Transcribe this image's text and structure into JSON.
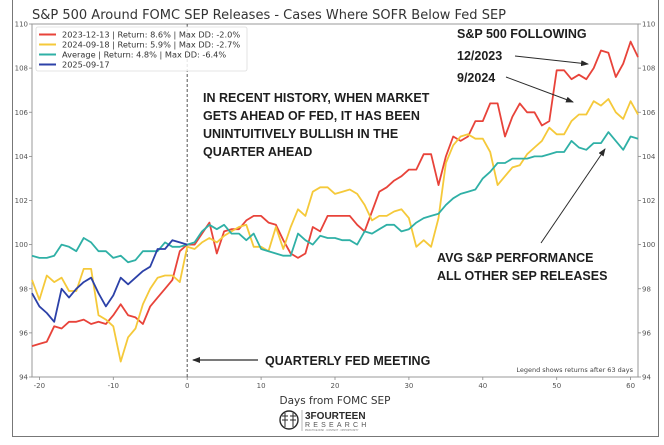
{
  "chart_data": {
    "type": "line",
    "title": "S&P 500 Around FOMC SEP Releases - Cases Where SOFR Below Fed SEP",
    "xlabel": "Days from FOMC SEP",
    "ylabel": "",
    "xlim": [
      -21,
      61
    ],
    "ylim": [
      94,
      110
    ],
    "xticks": [
      -20,
      -10,
      0,
      10,
      20,
      30,
      40,
      50,
      60
    ],
    "yticks": [
      94,
      96,
      98,
      100,
      102,
      104,
      106,
      108,
      110
    ],
    "grid": false,
    "dual_y_axis": true,
    "legend_position": "top-left",
    "colors": {
      "red": "#e8433a",
      "yellow": "#f5c93a",
      "teal": "#2fb0a6",
      "blue": "#2c41a8",
      "arrow": "#2a2a2a",
      "vline": "#555555"
    },
    "series": [
      {
        "name": "2023-12-13 | Return: 8.6% | Max DD: -2.0%",
        "color_key": "red",
        "x_start": -21,
        "values": [
          95.4,
          95.5,
          95.6,
          96.3,
          96.2,
          96.5,
          96.5,
          96.6,
          96.4,
          96.5,
          96.4,
          96.8,
          97.3,
          96.8,
          96.7,
          96.4,
          97.2,
          97.6,
          98.0,
          98.4,
          99.7,
          100.0,
          100.0,
          100.5,
          101.0,
          99.6,
          100.6,
          100.7,
          100.7,
          101.1,
          101.3,
          101.3,
          101.0,
          100.9,
          100.2,
          99.6,
          99.4,
          99.6,
          100.8,
          100.6,
          101.3,
          101.3,
          101.3,
          101.3,
          100.9,
          100.6,
          101.5,
          102.4,
          102.6,
          102.9,
          103.1,
          103.4,
          103.4,
          104.1,
          104.1,
          102.7,
          104.0,
          104.9,
          104.7,
          104.9,
          105.6,
          105.6,
          106.4,
          106.4,
          104.9,
          105.8,
          106.4,
          106.0,
          106.0,
          105.4,
          105.6,
          107.9,
          107.9,
          107.5,
          107.7,
          107.5,
          108.0,
          108.8,
          108.7,
          107.6,
          108.2,
          109.2,
          108.5
        ]
      },
      {
        "name": "2024-09-18 | Return: 5.9% | Max DD: -2.7%",
        "color_key": "yellow",
        "x_start": -21,
        "values": [
          98.4,
          97.5,
          98.6,
          98.3,
          98.5,
          97.9,
          97.9,
          98.9,
          98.9,
          96.8,
          96.6,
          96.3,
          94.7,
          95.8,
          96.2,
          97.3,
          98.0,
          98.5,
          98.6,
          98.6,
          98.3,
          99.9,
          99.8,
          100.1,
          100.3,
          100.1,
          100.4,
          100.6,
          100.8,
          100.9,
          99.9,
          99.9,
          99.7,
          100.8,
          99.8,
          100.8,
          101.6,
          101.3,
          102.4,
          102.6,
          102.6,
          102.3,
          102.4,
          102.5,
          102.3,
          101.8,
          101.1,
          101.3,
          101.3,
          101.5,
          101.6,
          101.2,
          99.9,
          100.2,
          99.9,
          101.2,
          103.7,
          104.5,
          104.9,
          105.0,
          104.8,
          104.8,
          104.2,
          102.7,
          103.1,
          103.5,
          103.6,
          104.1,
          104.4,
          104.7,
          105.3,
          105.0,
          105.0,
          105.6,
          105.9,
          105.9,
          106.5,
          106.3,
          106.6,
          106.0,
          105.7,
          106.5,
          105.9
        ]
      },
      {
        "name": "Average | Return: 4.8% | Max DD: -6.4%",
        "color_key": "teal",
        "x_start": -21,
        "values": [
          99.5,
          99.4,
          99.4,
          99.5,
          100.0,
          99.9,
          99.7,
          100.3,
          100.1,
          99.7,
          99.7,
          99.4,
          99.5,
          99.2,
          99.3,
          99.7,
          99.7,
          99.7,
          100.1,
          99.9,
          99.9,
          100.0,
          100.1,
          100.6,
          100.9,
          100.7,
          100.9,
          100.5,
          100.5,
          100.2,
          100.5,
          99.8,
          99.7,
          99.6,
          99.5,
          99.5,
          100.5,
          100.2,
          100.0,
          100.4,
          100.3,
          100.3,
          100.2,
          100.2,
          100.0,
          100.6,
          100.5,
          100.7,
          100.9,
          100.9,
          100.6,
          100.7,
          101.0,
          101.2,
          101.3,
          101.4,
          101.8,
          102.1,
          102.3,
          102.4,
          102.5,
          103.0,
          103.3,
          103.7,
          103.7,
          103.9,
          103.9,
          103.9,
          104.0,
          104.0,
          104.1,
          104.2,
          104.2,
          104.7,
          104.4,
          104.3,
          104.6,
          104.6,
          105.1,
          104.7,
          104.3,
          104.9,
          104.8
        ]
      },
      {
        "name": "2025-09-17",
        "color_key": "blue",
        "x_start": -21,
        "values": [
          97.8,
          97.2,
          96.9,
          96.5,
          98.0,
          97.6,
          98.0,
          98.3,
          98.5,
          97.8,
          97.2,
          97.7,
          98.5,
          98.2,
          98.5,
          98.8,
          99.0,
          99.8,
          99.8,
          100.2,
          100.1,
          100.0
        ]
      }
    ],
    "annotations": {
      "main_lines": [
        "IN RECENT HISTORY, WHEN MARKET",
        "GETS AHEAD OF FED, IT HAS BEEN",
        "UNINTUITIVELY BULLISH IN THE",
        "QUARTER AHEAD"
      ],
      "following_lines": [
        "S&P 500 FOLLOWING",
        "12/2023",
        "9/2024"
      ],
      "avg_lines": [
        "AVG S&P PERFORMANCE",
        "ALL OTHER SEP RELEASES"
      ],
      "fed_meeting": "QUARTERLY FED MEETING",
      "legend_note": "Legend shows returns after 63 days"
    },
    "vline_x": 0
  },
  "logo": {
    "main": "3FOURTEEN",
    "sub": "RESEARCH",
    "tagline": "PRACTICE RISK · CONTEXT · OPPORTUNITY"
  }
}
